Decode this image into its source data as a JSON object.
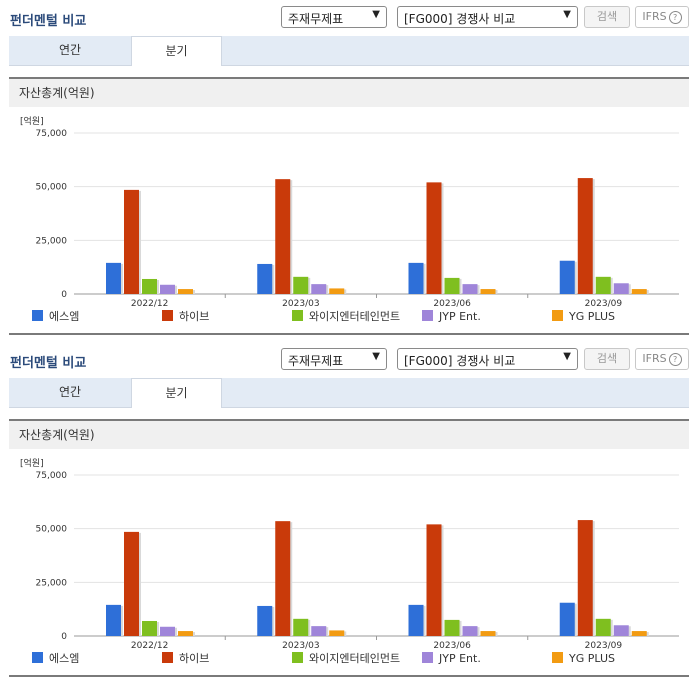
{
  "panels": [
    {
      "title": "펀더멘털 비교",
      "select_a": "주재무제표",
      "select_b": "[FG000] 경쟁사 비교",
      "search_btn": "검색",
      "ifrs_btn": "IFRS",
      "help_glyph": "?",
      "tabs": [
        "연간",
        "분기"
      ],
      "active_tab": "분기",
      "section_title": "자산총계(억원)",
      "unit": "[억원]"
    },
    {
      "title": "펀더멘털 비교",
      "select_a": "주재무제표",
      "select_b": "[FG000] 경쟁사 비교",
      "search_btn": "검색",
      "ifrs_btn": "IFRS",
      "help_glyph": "?",
      "tabs": [
        "연간",
        "분기"
      ],
      "active_tab": "분기",
      "section_title": "자산총계(억원)",
      "unit": "[억원]"
    }
  ],
  "icons": {
    "select_chevron": "chevron-down-icon",
    "help": "question-circle-icon"
  },
  "chart_data": [
    {
      "type": "bar",
      "categories": [
        "2022/12",
        "2023/03",
        "2023/06",
        "2023/09"
      ],
      "ylim": [
        0,
        75000
      ],
      "yticks": [
        0,
        25000,
        50000,
        75000
      ],
      "ytick_labels": [
        "0",
        "25,000",
        "50,000",
        "75,000"
      ],
      "grid": true,
      "legend_position": "bottom",
      "series": [
        {
          "name": "에스엠",
          "color": "#2e6fd8",
          "values": [
            14500,
            14000,
            14500,
            15500
          ]
        },
        {
          "name": "하이브",
          "color": "#c93a0a",
          "values": [
            48500,
            53500,
            52000,
            54000
          ]
        },
        {
          "name": "와이지엔터테인먼트",
          "color": "#7fbf1f",
          "values": [
            7000,
            8000,
            7500,
            8000
          ]
        },
        {
          "name": "JYP Ent.",
          "color": "#9f85d9",
          "values": [
            4300,
            4600,
            4600,
            5000
          ]
        },
        {
          "name": "YG PLUS",
          "color": "#f29b12",
          "values": [
            2300,
            2600,
            2300,
            2300
          ]
        }
      ]
    },
    {
      "type": "bar",
      "categories": [
        "2022/12",
        "2023/03",
        "2023/06",
        "2023/09"
      ],
      "ylim": [
        0,
        75000
      ],
      "yticks": [
        0,
        25000,
        50000,
        75000
      ],
      "ytick_labels": [
        "0",
        "25,000",
        "50,000",
        "75,000"
      ],
      "grid": true,
      "legend_position": "bottom",
      "series": [
        {
          "name": "에스엠",
          "color": "#2e6fd8",
          "values": [
            14500,
            14000,
            14500,
            15500
          ]
        },
        {
          "name": "하이브",
          "color": "#c93a0a",
          "values": [
            48500,
            53500,
            52000,
            54000
          ]
        },
        {
          "name": "와이지엔터테인먼트",
          "color": "#7fbf1f",
          "values": [
            7000,
            8000,
            7500,
            8000
          ]
        },
        {
          "name": "JYP Ent.",
          "color": "#9f85d9",
          "values": [
            4300,
            4600,
            4600,
            5000
          ]
        },
        {
          "name": "YG PLUS",
          "color": "#f29b12",
          "values": [
            2300,
            2600,
            2300,
            2300
          ]
        }
      ]
    }
  ]
}
